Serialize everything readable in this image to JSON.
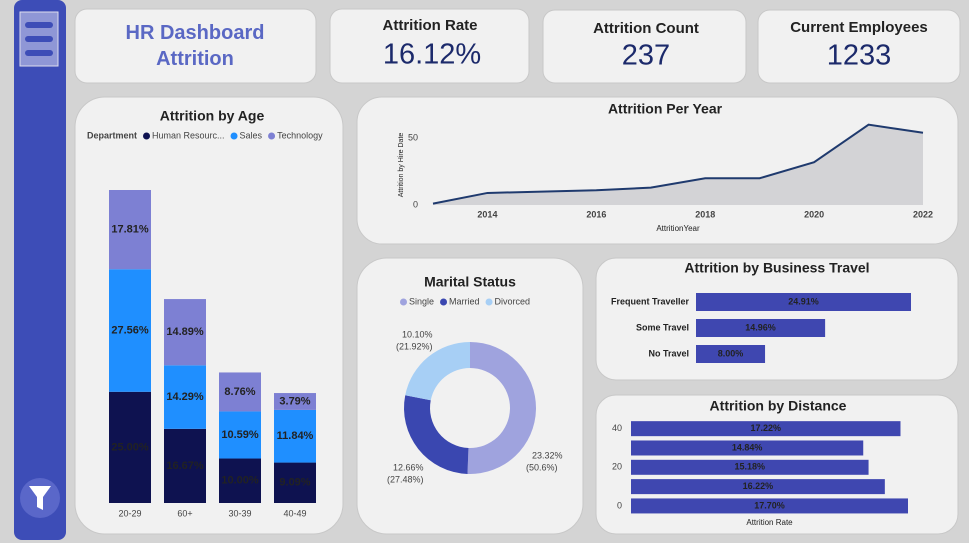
{
  "header": {
    "title": "HR Dashboard Attrition"
  },
  "kpis": [
    {
      "label": "Attrition Rate",
      "value": "16.12%"
    },
    {
      "label": "Attrition Count",
      "value": "237"
    },
    {
      "label": "Current Employees",
      "value": "1233"
    }
  ],
  "chart_data": [
    {
      "type": "stacked-bar",
      "title": "Attrition by Age",
      "legend_title": "Department",
      "categories": [
        "20-29",
        "60+",
        "30-39",
        "40-49"
      ],
      "series": [
        {
          "name": "Human Resourc...",
          "color": "#0e1250",
          "values": [
            25.0,
            16.67,
            10.0,
            9.09
          ],
          "value_labels": [
            "25.00%",
            "16.67%",
            "10.00%",
            "9.09%"
          ]
        },
        {
          "name": "Sales",
          "color": "#1f8fff",
          "values": [
            27.56,
            14.29,
            10.59,
            11.84
          ],
          "value_labels": [
            "27.56%",
            "14.29%",
            "10.59%",
            "11.84%"
          ]
        },
        {
          "name": "Technology",
          "color": "#7d80d3",
          "values": [
            17.81,
            14.89,
            8.76,
            3.79
          ],
          "value_labels": [
            "17.81%",
            "14.89%",
            "8.76%",
            "3.79%"
          ]
        }
      ]
    },
    {
      "type": "area",
      "title": "Attrition Per Year",
      "x": [
        2013,
        2014,
        2015,
        2016,
        2017,
        2018,
        2019,
        2020,
        2021,
        2022
      ],
      "values": [
        1,
        9,
        10,
        11,
        13,
        20,
        20,
        32,
        60,
        54
      ],
      "xlim": [
        2013,
        2022
      ],
      "ylim": [
        0,
        65
      ],
      "xticks": [
        2014,
        2016,
        2018,
        2020,
        2022
      ],
      "yticks": [
        0,
        50
      ],
      "xlabel": "AttritionYear",
      "ylabel": "Attrition by Hire Date",
      "color": "#1f3a6e"
    },
    {
      "type": "donut",
      "title": "Marital Status",
      "categories": [
        "Single",
        "Married",
        "Divorced"
      ],
      "colors": [
        "#9fa3de",
        "#3a47b0",
        "#a7cff5"
      ],
      "values": [
        23.32,
        12.66,
        10.1
      ],
      "value_labels": [
        "23.32%",
        "12.66%",
        "10.10%"
      ],
      "shares": [
        50.6,
        27.48,
        21.92
      ],
      "share_labels": [
        "(50.6%)",
        "(27.48%)",
        "(21.92%)"
      ]
    },
    {
      "type": "hbar",
      "title": "Attrition by Business Travel",
      "categories": [
        "Frequent Traveller",
        "Some Travel",
        "No Travel"
      ],
      "values": [
        24.91,
        14.96,
        8.0
      ],
      "value_labels": [
        "24.91%",
        "14.96%",
        "8.00%"
      ],
      "color": "#3f47b0"
    },
    {
      "type": "hbar",
      "title": "Attrition by Distance",
      "y": [
        40,
        30,
        20,
        10,
        0
      ],
      "values": [
        17.22,
        14.84,
        15.18,
        16.22,
        17.7
      ],
      "value_labels": [
        "17.22%",
        "14.84%",
        "15.18%",
        "16.22%",
        "17.70%"
      ],
      "ylim": [
        -5,
        45
      ],
      "yticks": [
        0,
        20,
        40
      ],
      "xlabel": "Attrition Rate",
      "color": "#3f47b0"
    }
  ]
}
